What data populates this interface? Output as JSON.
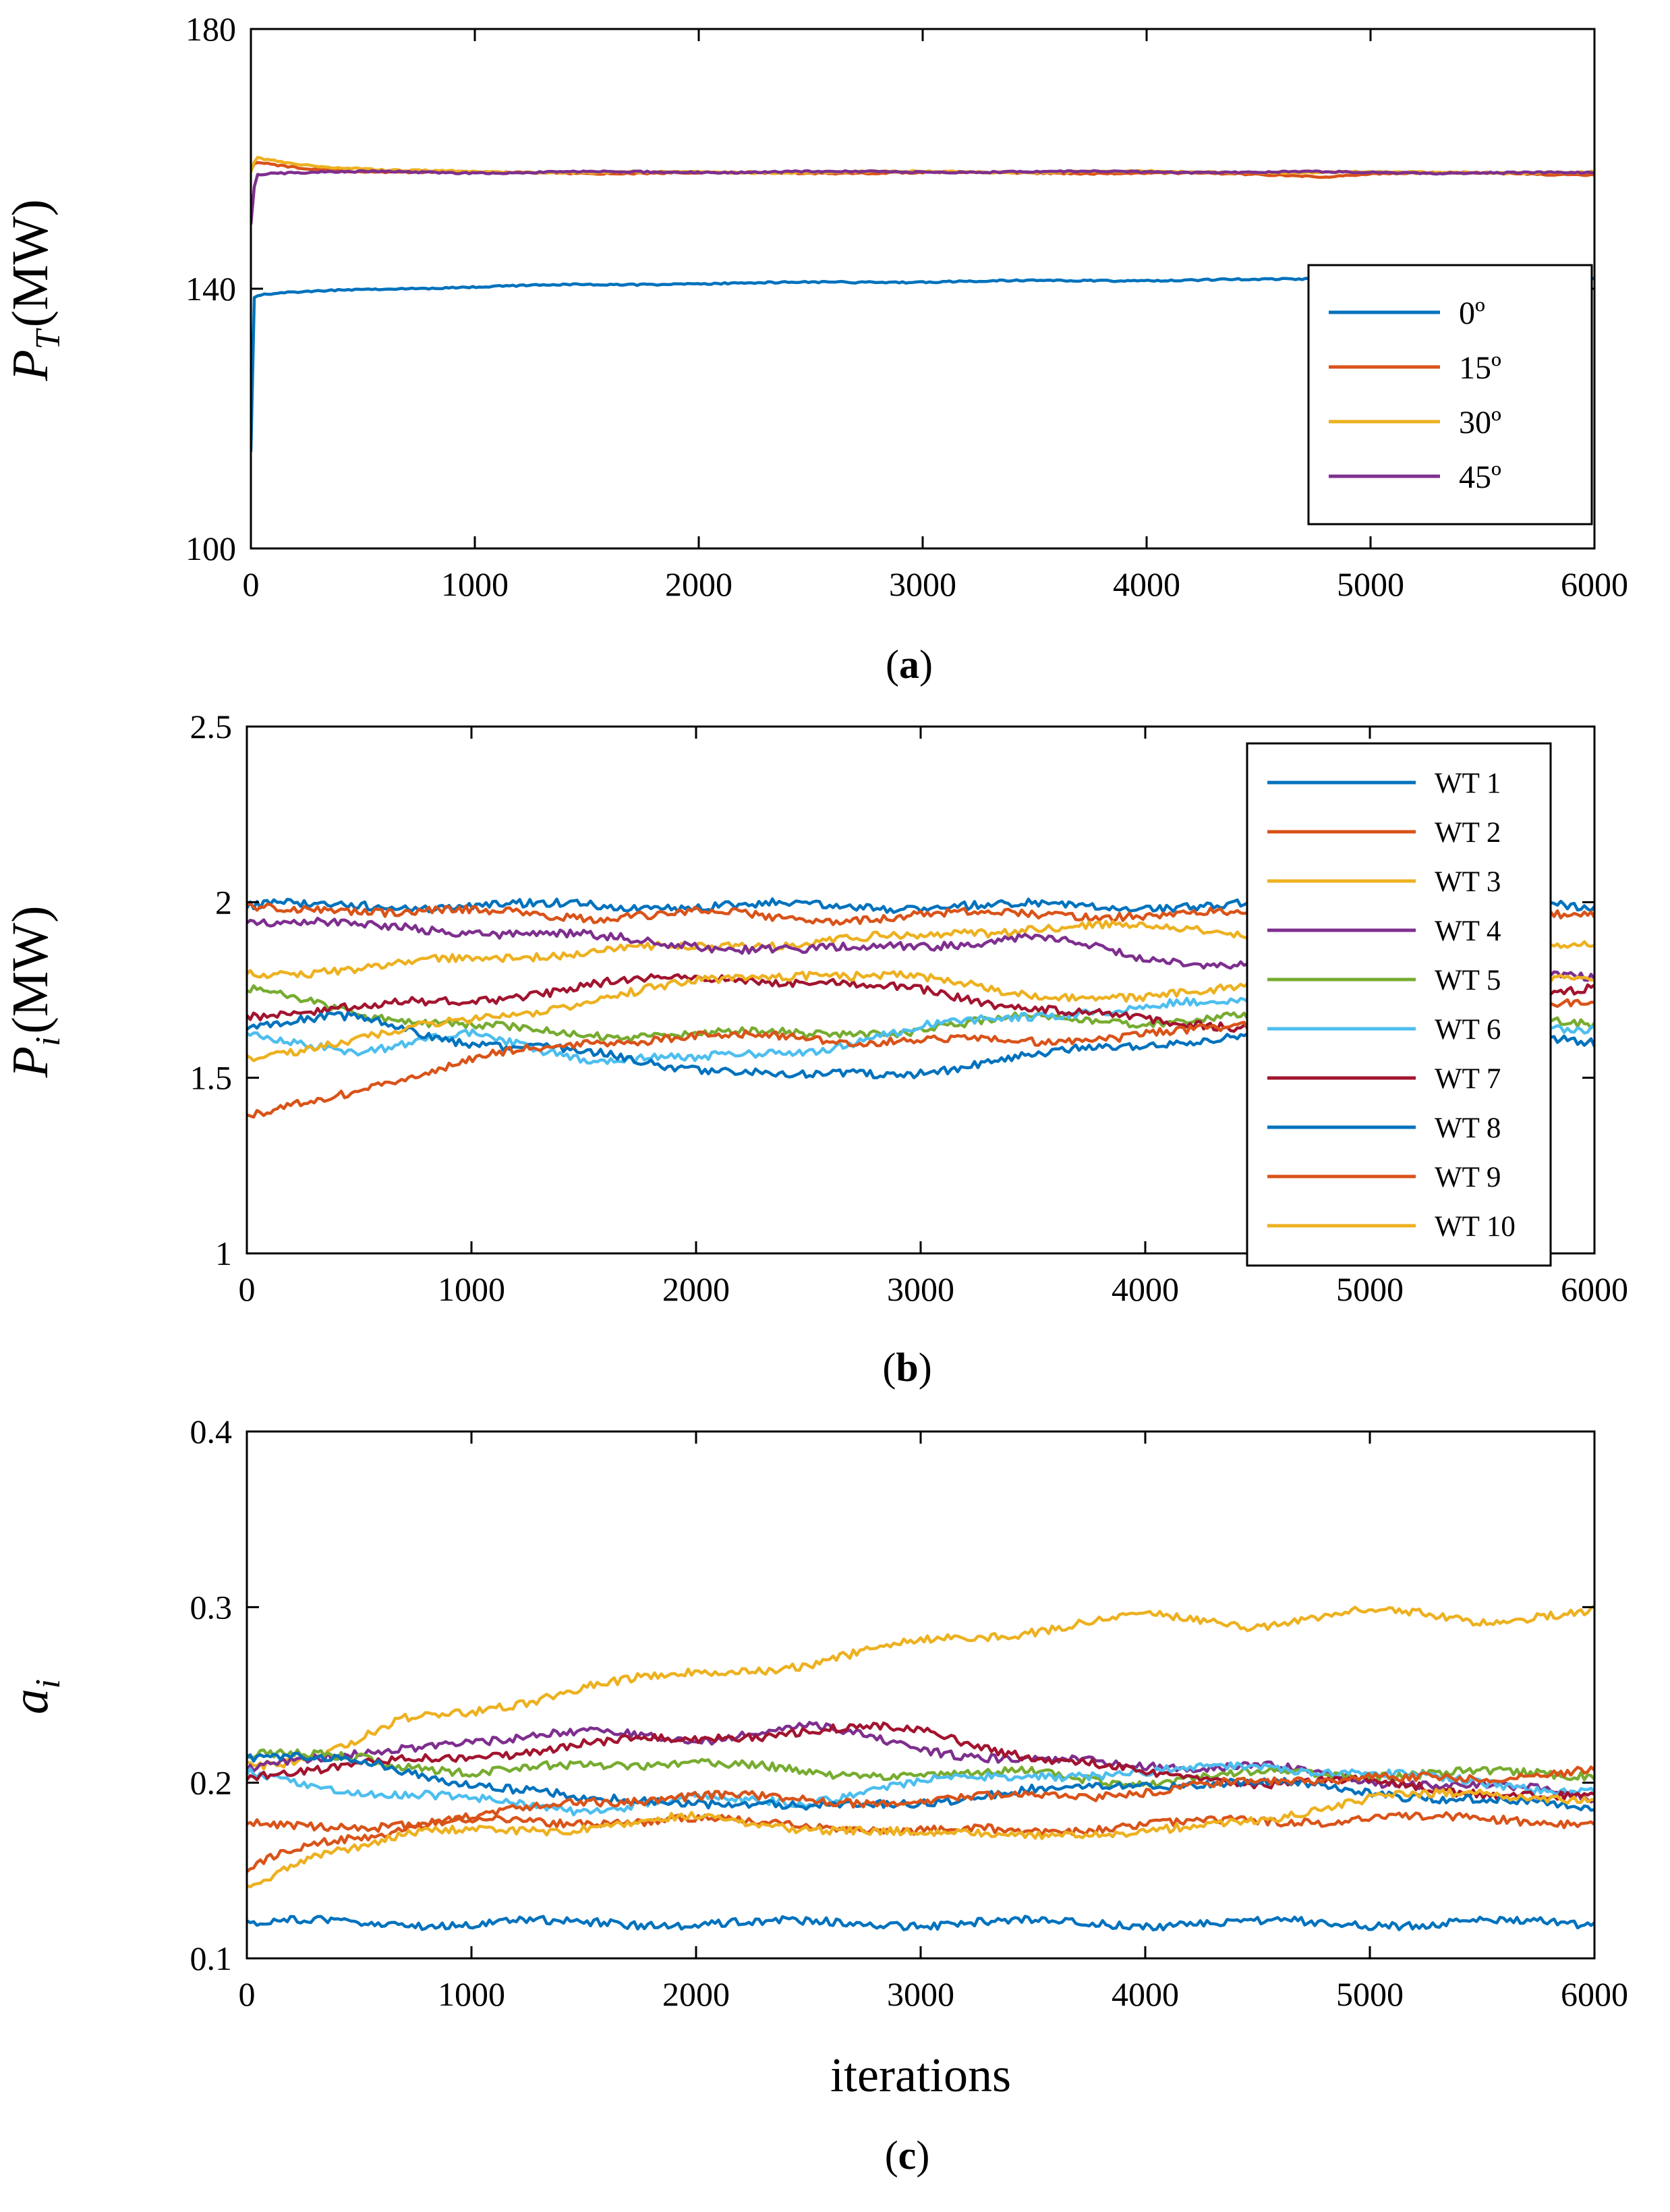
{
  "chart_data": [
    {
      "type": "line",
      "panel_caption": "a",
      "xlabel": "",
      "ylabel_base": "P",
      "ylabel_sub": "T",
      "ylabel_unit": "(MW)",
      "xlim": [
        0,
        6000
      ],
      "ylim": [
        100,
        180
      ],
      "xticks": [
        0,
        1000,
        2000,
        3000,
        4000,
        5000,
        6000
      ],
      "yticks": [
        100,
        140,
        180
      ],
      "legend_position": "bottom-right",
      "series": [
        {
          "name": "0º",
          "color": "#0072BD",
          "x": [
            0,
            10,
            30,
            100,
            300,
            600,
            1000,
            1500,
            2000,
            3000,
            4000,
            5000,
            5500,
            6000
          ],
          "values": [
            115,
            138.5,
            139,
            139.2,
            139.6,
            140,
            140.3,
            140.6,
            140.8,
            141.1,
            141.3,
            141.5,
            141.6,
            141.7
          ]
        },
        {
          "name": "15º",
          "color": "#D95319",
          "x": [
            0,
            20,
            100,
            300,
            600,
            1000,
            2000,
            3000,
            4000,
            4500,
            4800,
            5000,
            5500,
            6000
          ],
          "values": [
            158,
            159.5,
            159,
            158.3,
            158,
            157.9,
            157.8,
            157.9,
            157.8,
            157.6,
            157.3,
            157.7,
            157.8,
            157.6
          ]
        },
        {
          "name": "30º",
          "color": "#EDB120",
          "x": [
            0,
            20,
            100,
            300,
            600,
            1000,
            2000,
            3000,
            4000,
            5000,
            6000
          ],
          "values": [
            158,
            160.2,
            159.8,
            158.9,
            158.2,
            158,
            157.9,
            158,
            158,
            157.9,
            157.9
          ]
        },
        {
          "name": "45º",
          "color": "#7E2F8E",
          "x": [
            0,
            20,
            100,
            300,
            600,
            1000,
            2000,
            3000,
            4000,
            5000,
            6000
          ],
          "values": [
            150,
            157.6,
            157.8,
            157.9,
            158,
            157.9,
            158,
            158,
            158,
            157.9,
            157.8
          ]
        }
      ]
    },
    {
      "type": "line",
      "panel_caption": "b",
      "xlabel": "",
      "ylabel_base": "P",
      "ylabel_sub": "i",
      "ylabel_unit": "(MW)",
      "xlim": [
        0,
        6000
      ],
      "ylim": [
        1,
        2.5
      ],
      "xticks": [
        0,
        1000,
        2000,
        3000,
        4000,
        5000,
        6000
      ],
      "yticks": [
        1,
        1.5,
        2,
        2.5
      ],
      "ytick_labels": [
        "1",
        "1.5",
        "2",
        "2.5"
      ],
      "legend_position": "top-right",
      "series": [
        {
          "name": "WT 1",
          "color": "#0072BD",
          "x": [
            0,
            500,
            1000,
            1500,
            2000,
            2500,
            3000,
            3500,
            4000,
            4500,
            5000,
            5500,
            6000
          ],
          "values": [
            1.99,
            1.99,
            1.99,
            1.99,
            1.99,
            1.99,
            1.99,
            1.99,
            1.99,
            1.99,
            1.99,
            1.99,
            1.99
          ]
        },
        {
          "name": "WT 2",
          "color": "#D95319",
          "x": [
            0,
            500,
            1000,
            1500,
            2000,
            2500,
            3000,
            3500,
            4000,
            4500,
            5000,
            5500,
            6000
          ],
          "values": [
            1.98,
            1.98,
            1.97,
            1.96,
            1.97,
            1.95,
            1.96,
            1.97,
            1.96,
            1.97,
            1.98,
            1.98,
            1.97
          ]
        },
        {
          "name": "WT 3",
          "color": "#EDB120",
          "x": [
            0,
            500,
            1000,
            1500,
            2000,
            2500,
            3000,
            3500,
            4000,
            4500,
            5000,
            5500,
            6000
          ],
          "values": [
            1.8,
            1.81,
            1.84,
            1.86,
            1.87,
            1.89,
            1.9,
            1.93,
            1.93,
            1.91,
            1.89,
            1.88,
            1.87
          ]
        },
        {
          "name": "WT 4",
          "color": "#7E2F8E",
          "x": [
            0,
            500,
            1000,
            1500,
            2000,
            2500,
            3000,
            3500,
            4000,
            4500,
            5000,
            5500,
            6000
          ],
          "values": [
            1.95,
            1.93,
            1.92,
            1.9,
            1.88,
            1.86,
            1.88,
            1.9,
            1.84,
            1.82,
            1.8,
            1.79,
            1.78
          ]
        },
        {
          "name": "WT 5",
          "color": "#77AC30",
          "x": [
            0,
            500,
            1000,
            1500,
            2000,
            2500,
            3000,
            3500,
            4000,
            4500,
            5000,
            5500,
            6000
          ],
          "values": [
            1.75,
            1.68,
            1.65,
            1.62,
            1.63,
            1.62,
            1.64,
            1.67,
            1.66,
            1.67,
            1.68,
            1.67,
            1.66
          ]
        },
        {
          "name": "WT 6",
          "color": "#4DBEEE",
          "x": [
            0,
            500,
            1000,
            1500,
            2000,
            2500,
            3000,
            3500,
            4000,
            4500,
            5000,
            5500,
            6000
          ],
          "values": [
            1.62,
            1.58,
            1.62,
            1.56,
            1.55,
            1.58,
            1.64,
            1.68,
            1.7,
            1.72,
            1.7,
            1.66,
            1.64
          ]
        },
        {
          "name": "WT 7",
          "color": "#A2142F",
          "x": [
            0,
            500,
            1000,
            1500,
            2000,
            2500,
            3000,
            3500,
            4000,
            4500,
            5000,
            5500,
            6000
          ],
          "values": [
            1.68,
            1.7,
            1.72,
            1.76,
            1.79,
            1.77,
            1.75,
            1.7,
            1.66,
            1.65,
            1.67,
            1.7,
            1.75
          ]
        },
        {
          "name": "WT 8",
          "color": "#0072BD",
          "x": [
            0,
            500,
            1000,
            1500,
            2000,
            2500,
            3000,
            3500,
            4000,
            4500,
            5000,
            5500,
            6000
          ],
          "values": [
            1.65,
            1.67,
            1.6,
            1.57,
            1.53,
            1.5,
            1.52,
            1.56,
            1.6,
            1.62,
            1.62,
            1.61,
            1.6
          ]
        },
        {
          "name": "WT 9",
          "color": "#D95319",
          "x": [
            0,
            500,
            1000,
            1500,
            2000,
            2500,
            3000,
            3500,
            4000,
            4500,
            5000,
            5500,
            6000
          ],
          "values": [
            1.38,
            1.47,
            1.55,
            1.6,
            1.62,
            1.61,
            1.61,
            1.6,
            1.63,
            1.64,
            1.65,
            1.7,
            1.73
          ]
        },
        {
          "name": "WT 10",
          "color": "#EDB120",
          "x": [
            0,
            500,
            1000,
            1500,
            2000,
            2500,
            3000,
            3500,
            4000,
            4500,
            5000,
            5500,
            6000
          ],
          "values": [
            1.55,
            1.62,
            1.66,
            1.72,
            1.77,
            1.8,
            1.78,
            1.74,
            1.72,
            1.77,
            1.8,
            1.8,
            1.78
          ]
        }
      ]
    },
    {
      "type": "line",
      "panel_caption": "c",
      "xlabel": "iterations",
      "ylabel_base": "a",
      "ylabel_sub": "i",
      "ylabel_unit": "",
      "xlim": [
        0,
        6000
      ],
      "ylim": [
        0.1,
        0.4
      ],
      "xticks": [
        0,
        1000,
        2000,
        3000,
        4000,
        5000,
        6000
      ],
      "yticks": [
        0.1,
        0.2,
        0.3,
        0.4
      ],
      "ytick_labels": [
        "0.1",
        "0.2",
        "0.3",
        "0.4"
      ],
      "series": [
        {
          "name": "WT 1",
          "color": "#0072BD",
          "x": [
            0,
            500,
            1000,
            1500,
            2000,
            2500,
            3000,
            3500,
            4000,
            4500,
            5000,
            5500,
            6000
          ],
          "values": [
            0.12,
            0.12,
            0.12,
            0.12,
            0.12,
            0.12,
            0.12,
            0.12,
            0.12,
            0.12,
            0.12,
            0.12,
            0.12
          ]
        },
        {
          "name": "WT 2",
          "color": "#D95319",
          "x": [
            0,
            500,
            1000,
            1500,
            2000,
            2500,
            3000,
            3500,
            4000,
            4500,
            5000,
            5500,
            6000
          ],
          "values": [
            0.175,
            0.176,
            0.177,
            0.178,
            0.179,
            0.176,
            0.172,
            0.173,
            0.176,
            0.178,
            0.18,
            0.179,
            0.178
          ]
        },
        {
          "name": "WT 3",
          "color": "#EDB120",
          "x": [
            0,
            300,
            700,
            1000,
            1500,
            2000,
            2500,
            3000,
            3500,
            4000,
            4500,
            5000,
            5500,
            6000
          ],
          "values": [
            0.21,
            0.215,
            0.235,
            0.24,
            0.255,
            0.262,
            0.268,
            0.28,
            0.287,
            0.295,
            0.29,
            0.298,
            0.293,
            0.297
          ]
        },
        {
          "name": "WT 4",
          "color": "#7E2F8E",
          "x": [
            0,
            500,
            1000,
            1500,
            2000,
            2500,
            3000,
            3500,
            4000,
            4500,
            5000,
            5500,
            6000
          ],
          "values": [
            0.21,
            0.215,
            0.225,
            0.228,
            0.225,
            0.232,
            0.22,
            0.212,
            0.21,
            0.21,
            0.2,
            0.2,
            0.19
          ]
        },
        {
          "name": "WT 5",
          "color": "#77AC30",
          "x": [
            0,
            500,
            1000,
            1500,
            2000,
            2500,
            3000,
            3500,
            4000,
            4500,
            5000,
            5500,
            6000
          ],
          "values": [
            0.215,
            0.215,
            0.205,
            0.21,
            0.212,
            0.205,
            0.205,
            0.205,
            0.2,
            0.205,
            0.205,
            0.205,
            0.205
          ]
        },
        {
          "name": "WT 6",
          "color": "#4DBEEE",
          "x": [
            0,
            500,
            1000,
            1500,
            2000,
            2500,
            3000,
            3500,
            4000,
            4500,
            5000,
            5500,
            6000
          ],
          "values": [
            0.205,
            0.195,
            0.19,
            0.185,
            0.19,
            0.19,
            0.2,
            0.205,
            0.205,
            0.21,
            0.205,
            0.2,
            0.195
          ]
        },
        {
          "name": "WT 7",
          "color": "#A2142F",
          "x": [
            0,
            500,
            1000,
            1500,
            2000,
            2500,
            3000,
            3500,
            4000,
            4500,
            5000,
            5500,
            6000
          ],
          "values": [
            0.205,
            0.21,
            0.215,
            0.222,
            0.225,
            0.23,
            0.23,
            0.215,
            0.205,
            0.2,
            0.2,
            0.195,
            0.19
          ]
        },
        {
          "name": "WT 8",
          "color": "#0072BD",
          "x": [
            0,
            500,
            1000,
            1500,
            2000,
            2500,
            3000,
            3500,
            4000,
            4500,
            5000,
            5500,
            6000
          ],
          "values": [
            0.215,
            0.212,
            0.2,
            0.19,
            0.19,
            0.185,
            0.19,
            0.195,
            0.2,
            0.2,
            0.195,
            0.19,
            0.185
          ]
        },
        {
          "name": "WT 9",
          "color": "#D95319",
          "x": [
            0,
            300,
            700,
            1000,
            1500,
            2000,
            2500,
            3000,
            3500,
            4000,
            4500,
            5000,
            5500,
            6000
          ],
          "values": [
            0.15,
            0.165,
            0.175,
            0.18,
            0.19,
            0.192,
            0.19,
            0.19,
            0.192,
            0.195,
            0.2,
            0.205,
            0.2,
            0.21
          ]
        },
        {
          "name": "WT 10",
          "color": "#EDB120",
          "x": [
            0,
            300,
            700,
            1000,
            1500,
            2000,
            2500,
            3000,
            3500,
            4000,
            4500,
            5000,
            5500,
            6000
          ],
          "values": [
            0.14,
            0.16,
            0.17,
            0.172,
            0.175,
            0.18,
            0.175,
            0.17,
            0.172,
            0.17,
            0.18,
            0.19,
            0.195,
            0.19
          ]
        }
      ]
    }
  ]
}
